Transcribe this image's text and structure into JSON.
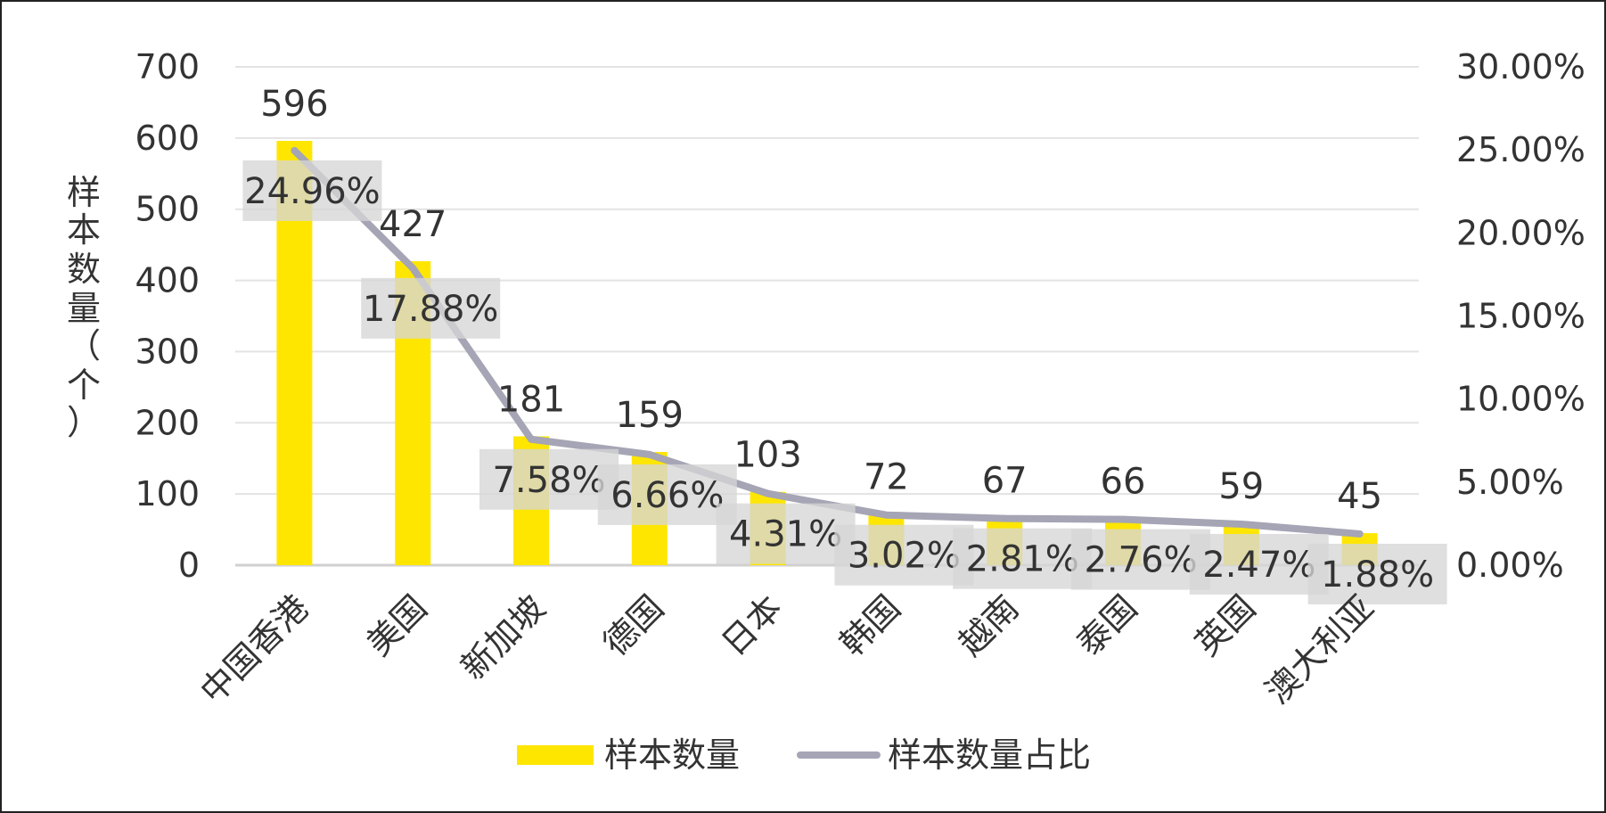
{
  "chart_data": {
    "type": "bar",
    "categories": [
      "中国香港",
      "美国",
      "新加坡",
      "德国",
      "日本",
      "韩国",
      "越南",
      "泰国",
      "英国",
      "澳大利亚"
    ],
    "series": [
      {
        "name": "样本数量",
        "type": "bar",
        "axis": "left",
        "color": "#FFE600",
        "values": [
          596,
          427,
          181,
          159,
          103,
          72,
          67,
          66,
          59,
          45
        ],
        "labels": [
          "596",
          "427",
          "181",
          "159",
          "103",
          "72",
          "67",
          "66",
          "59",
          "45"
        ]
      },
      {
        "name": "样本数量占比",
        "type": "line",
        "axis": "right",
        "color": "#A5A5B5",
        "values": [
          24.96,
          17.88,
          7.58,
          6.66,
          4.31,
          3.02,
          2.81,
          2.76,
          2.47,
          1.88
        ],
        "labels": [
          "24.96%",
          "17.88%",
          "7.58%",
          "6.66%",
          "4.31%",
          "3.02%",
          "2.81%",
          "2.76%",
          "2.47%",
          "1.88%"
        ]
      }
    ],
    "ylabel": [
      "样",
      "本",
      "数",
      "量",
      "（",
      "个",
      "）"
    ],
    "ylim": [
      0,
      700
    ],
    "y_ticks": [
      "0",
      "100",
      "200",
      "300",
      "400",
      "500",
      "600",
      "700"
    ],
    "y2lim": [
      0,
      30
    ],
    "y2_ticks": [
      "0.00%",
      "5.00%",
      "10.00%",
      "15.00%",
      "20.00%",
      "25.00%",
      "30.00%"
    ],
    "grid": true,
    "legend": "bottom"
  }
}
